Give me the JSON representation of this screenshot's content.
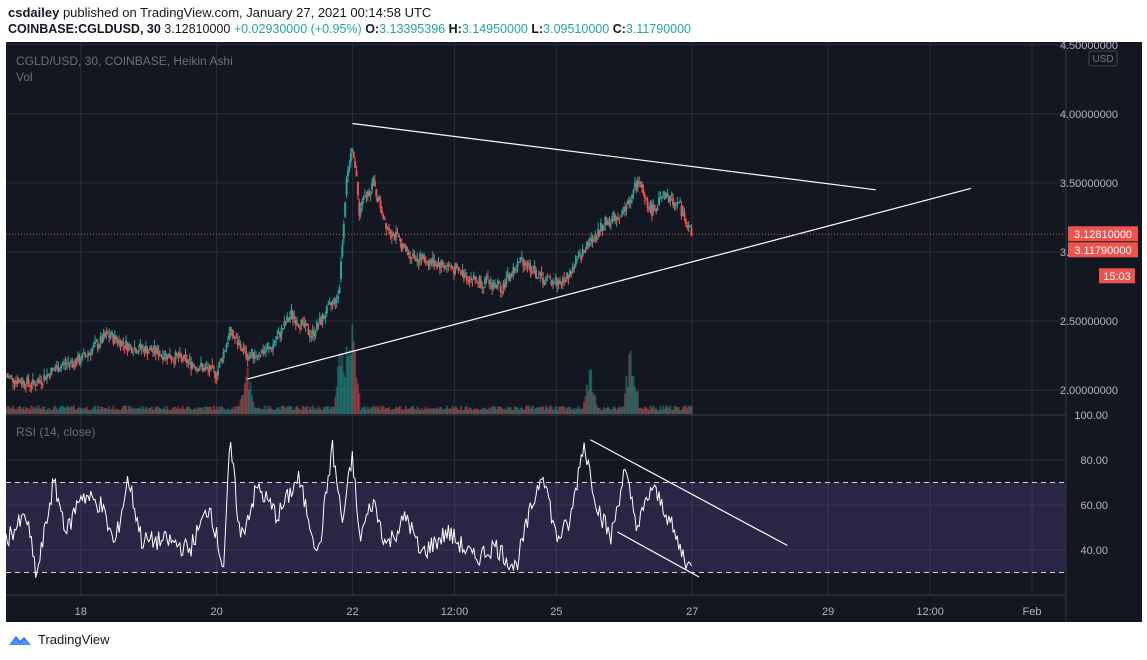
{
  "header": {
    "publisher": "csdailey",
    "published_text": "published on TradingView.com, January 27, 2021 00:14:58 UTC",
    "symbol": "COINBASE:CGLDUSD, 30",
    "price": "3.12810000",
    "change": "+0.02930000 (+0.95%)",
    "o_label": "O:",
    "o_value": "3.13395396",
    "h_label": "H:",
    "h_value": "3.14950000",
    "l_label": "L:",
    "l_value": "3.09510000",
    "c_label": "C:",
    "c_value": "3.11790000"
  },
  "legend": {
    "main": "CGLD/USD, 30, COINBASE, Heikin Ashi",
    "vol": "Vol",
    "rsi": "RSI (14, close)"
  },
  "currency_badge": "USD",
  "price_badges": {
    "last": "3.12810000",
    "close": "3.11790000",
    "countdown": "15:03"
  },
  "colors": {
    "background": "#131722",
    "up": "#26a69a",
    "down": "#ef5350",
    "rsi_band": "#7e57c2",
    "grid": "#2a2e39",
    "badge": "#ef5350"
  },
  "footer": {
    "brand": "TradingView"
  },
  "chart_data": [
    {
      "type": "candlestick",
      "title": "CGLD/USD, 30, COINBASE, Heikin Ashi",
      "y_ticks": [
        "4.50000000",
        "4.00000000",
        "3.50000000",
        "3.00000000",
        "2.50000000",
        "2.00000000"
      ],
      "ylim": [
        1.82,
        4.52
      ],
      "x_ticks": [
        "18",
        "20",
        "22",
        "12:00",
        "25",
        "27",
        "29",
        "12:00",
        "Feb"
      ],
      "xlim": [
        16.9,
        32.5
      ],
      "last_price": 3.1281,
      "close_price": 3.1179,
      "anchors": [
        [
          16.9,
          2.1
        ],
        [
          17.3,
          2.04
        ],
        [
          17.7,
          2.18
        ],
        [
          18.0,
          2.22
        ],
        [
          18.4,
          2.4
        ],
        [
          18.7,
          2.32
        ],
        [
          19.1,
          2.28
        ],
        [
          19.5,
          2.22
        ],
        [
          20.0,
          2.12
        ],
        [
          20.2,
          2.42
        ],
        [
          20.45,
          2.25
        ],
        [
          20.8,
          2.3
        ],
        [
          21.1,
          2.55
        ],
        [
          21.4,
          2.4
        ],
        [
          21.6,
          2.55
        ],
        [
          21.8,
          2.7
        ],
        [
          21.9,
          3.45
        ],
        [
          22.0,
          3.8
        ],
        [
          22.1,
          3.3
        ],
        [
          22.3,
          3.5
        ],
        [
          22.5,
          3.2
        ],
        [
          22.8,
          3.0
        ],
        [
          23.0,
          2.95
        ],
        [
          23.4,
          2.9
        ],
        [
          23.8,
          2.8
        ],
        [
          24.2,
          2.75
        ],
        [
          24.5,
          2.95
        ],
        [
          24.8,
          2.8
        ],
        [
          25.1,
          2.78
        ],
        [
          25.4,
          3.0
        ],
        [
          25.7,
          3.2
        ],
        [
          26.0,
          3.3
        ],
        [
          26.2,
          3.5
        ],
        [
          26.4,
          3.3
        ],
        [
          26.6,
          3.4
        ],
        [
          26.8,
          3.35
        ],
        [
          27.0,
          3.12
        ]
      ],
      "trendlines": [
        {
          "from": [
            20.45,
            2.08
          ],
          "to": [
            31.1,
            3.46
          ]
        },
        {
          "from": [
            22.0,
            3.93
          ],
          "to": [
            29.7,
            3.45
          ]
        }
      ]
    },
    {
      "type": "bar",
      "title": "Vol",
      "volume_spikes": [
        [
          20.45,
          0.5
        ],
        [
          21.85,
          1.0
        ],
        [
          22.0,
          1.0
        ],
        [
          26.1,
          0.9
        ],
        [
          25.5,
          0.5
        ]
      ]
    },
    {
      "type": "line",
      "title": "RSI (14, close)",
      "y_ticks": [
        "100.00",
        "80.00",
        "60.00",
        "40.00"
      ],
      "ylim": [
        20,
        100
      ],
      "band": [
        30,
        70
      ],
      "anchors": [
        [
          16.9,
          45
        ],
        [
          17.2,
          55
        ],
        [
          17.35,
          28
        ],
        [
          17.6,
          70
        ],
        [
          17.8,
          48
        ],
        [
          18.0,
          65
        ],
        [
          18.3,
          60
        ],
        [
          18.5,
          42
        ],
        [
          18.7,
          72
        ],
        [
          18.9,
          44
        ],
        [
          19.3,
          44
        ],
        [
          19.6,
          40
        ],
        [
          19.9,
          60
        ],
        [
          20.1,
          32
        ],
        [
          20.2,
          88
        ],
        [
          20.35,
          45
        ],
        [
          20.6,
          68
        ],
        [
          20.9,
          55
        ],
        [
          21.2,
          72
        ],
        [
          21.5,
          38
        ],
        [
          21.7,
          86
        ],
        [
          21.85,
          52
        ],
        [
          22.0,
          82
        ],
        [
          22.1,
          45
        ],
        [
          22.3,
          62
        ],
        [
          22.5,
          42
        ],
        [
          22.8,
          55
        ],
        [
          23.0,
          38
        ],
        [
          23.4,
          48
        ],
        [
          23.8,
          36
        ],
        [
          24.1,
          42
        ],
        [
          24.4,
          32
        ],
        [
          24.6,
          55
        ],
        [
          24.8,
          76
        ],
        [
          25.0,
          45
        ],
        [
          25.2,
          52
        ],
        [
          25.4,
          88
        ],
        [
          25.6,
          60
        ],
        [
          25.8,
          45
        ],
        [
          26.0,
          75
        ],
        [
          26.2,
          50
        ],
        [
          26.4,
          68
        ],
        [
          26.6,
          58
        ],
        [
          26.8,
          42
        ],
        [
          27.0,
          30
        ]
      ],
      "trendlines": [
        {
          "from": [
            25.5,
            89
          ],
          "to": [
            28.4,
            42
          ]
        },
        {
          "from": [
            25.9,
            48
          ],
          "to": [
            27.1,
            28
          ]
        }
      ]
    }
  ]
}
